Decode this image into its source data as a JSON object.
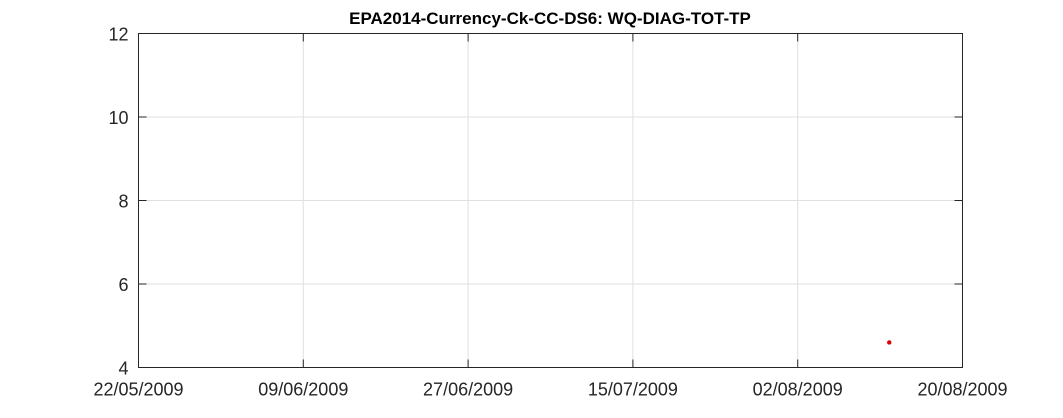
{
  "chart_data": {
    "type": "scatter",
    "title": "EPA2014-Currency-Ck-CC-DS6: WQ-DIAG-TOT-TP",
    "xlabel": "",
    "ylabel": "",
    "x_axis_type": "date",
    "xlim": [
      "22/05/2009",
      "20/08/2009"
    ],
    "ylim": [
      4,
      12
    ],
    "x_ticks": [
      "22/05/2009",
      "09/06/2009",
      "27/06/2009",
      "15/07/2009",
      "02/08/2009",
      "20/08/2009"
    ],
    "y_ticks": [
      4,
      6,
      8,
      10,
      12
    ],
    "grid": true,
    "legend": "none",
    "series": [
      {
        "color": "#e00000",
        "points": [
          {
            "x": "12/08/2009",
            "y": 4.6
          }
        ]
      }
    ]
  }
}
